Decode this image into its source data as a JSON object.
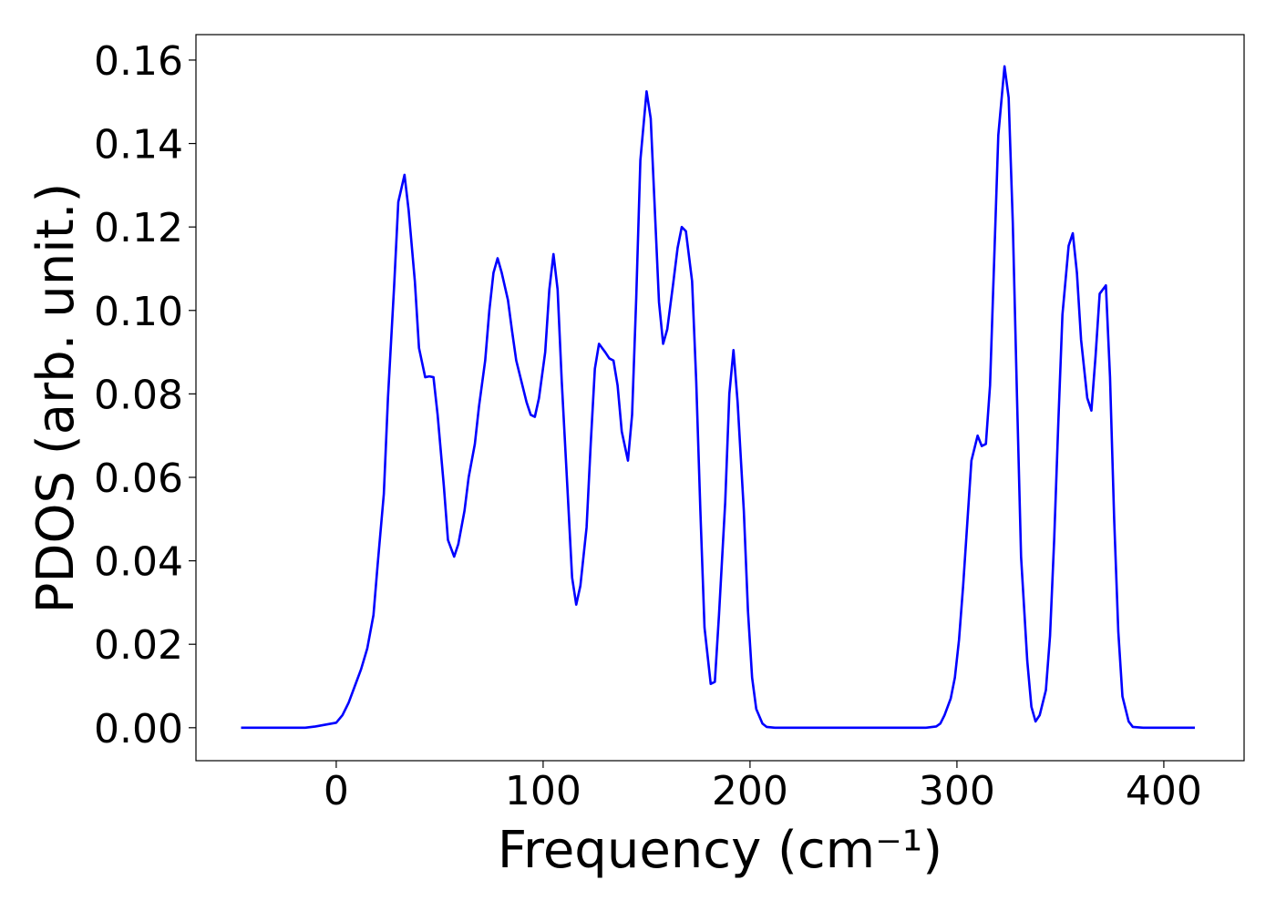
{
  "chart_data": {
    "type": "line",
    "xlabel": "Frequency (cm⁻¹)",
    "ylabel": "PDOS (arb. unit.)",
    "color": "#0000ff",
    "xlim": [
      -67.8,
      438.8
    ],
    "ylim": [
      -0.0079,
      0.1661
    ],
    "xticks": [
      0,
      100,
      200,
      300,
      400
    ],
    "yticks": [
      {
        "value": 0,
        "label": "0.00"
      },
      {
        "value": 0.02,
        "label": "0.02"
      },
      {
        "value": 0.04,
        "label": "0.04"
      },
      {
        "value": 0.06,
        "label": "0.06"
      },
      {
        "value": 0.08,
        "label": "0.08"
      },
      {
        "value": 0.1,
        "label": "0.10"
      },
      {
        "value": 0.12,
        "label": "0.12"
      },
      {
        "value": 0.14,
        "label": "0.14"
      },
      {
        "value": 0.16,
        "label": "0.16"
      }
    ],
    "x": [
      -46,
      -15,
      -10,
      0,
      3,
      6,
      9,
      12,
      15,
      18,
      20,
      23,
      25,
      28,
      30,
      33,
      35,
      38,
      40,
      43,
      45,
      47,
      49,
      52,
      54,
      57,
      59,
      62,
      64,
      67,
      69,
      72,
      74,
      76,
      78,
      80,
      83,
      85,
      87,
      90,
      92,
      94,
      96,
      98,
      101,
      103,
      105,
      107,
      109,
      112,
      114,
      116,
      118,
      121,
      123,
      125,
      127,
      130,
      132,
      134,
      136,
      138,
      141,
      143,
      145,
      147,
      150,
      152,
      154,
      156,
      158,
      160,
      163,
      165,
      167,
      169,
      172,
      174,
      176,
      178,
      181,
      183,
      185,
      188,
      190,
      192,
      194,
      197,
      199,
      201,
      203,
      206,
      208,
      212,
      285,
      290,
      292,
      294,
      297,
      299,
      301,
      303,
      305,
      307,
      310,
      312,
      314,
      316,
      318,
      320,
      323,
      325,
      327,
      329,
      331,
      334,
      336,
      338,
      340,
      343,
      345,
      347,
      349,
      351,
      354,
      356,
      358,
      360,
      363,
      365,
      367,
      369,
      372,
      374,
      376,
      378,
      380,
      383,
      385,
      390,
      415
    ],
    "values": [
      0,
      0,
      0.0003,
      0.0012,
      0.003,
      0.006,
      0.01,
      0.014,
      0.019,
      0.027,
      0.039,
      0.056,
      0.079,
      0.106,
      0.126,
      0.1325,
      0.124,
      0.107,
      0.091,
      0.084,
      0.0842,
      0.084,
      0.075,
      0.058,
      0.045,
      0.041,
      0.044,
      0.052,
      0.06,
      0.068,
      0.077,
      0.088,
      0.1,
      0.109,
      0.1125,
      0.109,
      0.1025,
      0.095,
      0.088,
      0.082,
      0.078,
      0.075,
      0.0745,
      0.079,
      0.09,
      0.105,
      0.1135,
      0.105,
      0.083,
      0.055,
      0.036,
      0.0295,
      0.034,
      0.048,
      0.068,
      0.086,
      0.092,
      0.09,
      0.0885,
      0.088,
      0.082,
      0.071,
      0.064,
      0.075,
      0.103,
      0.136,
      0.1525,
      0.146,
      0.124,
      0.102,
      0.092,
      0.0955,
      0.107,
      0.115,
      0.12,
      0.119,
      0.107,
      0.083,
      0.052,
      0.024,
      0.0105,
      0.011,
      0.027,
      0.054,
      0.08,
      0.0905,
      0.078,
      0.052,
      0.028,
      0.012,
      0.0045,
      0.001,
      0.0002,
      0,
      0,
      0.0003,
      0.001,
      0.003,
      0.007,
      0.012,
      0.021,
      0.034,
      0.049,
      0.064,
      0.07,
      0.0675,
      0.068,
      0.082,
      0.112,
      0.142,
      0.1585,
      0.151,
      0.121,
      0.08,
      0.041,
      0.016,
      0.005,
      0.0015,
      0.003,
      0.009,
      0.022,
      0.045,
      0.073,
      0.099,
      0.1155,
      0.1185,
      0.109,
      0.093,
      0.079,
      0.076,
      0.089,
      0.104,
      0.106,
      0.084,
      0.05,
      0.023,
      0.0075,
      0.0015,
      0.0002,
      0,
      0
    ]
  }
}
